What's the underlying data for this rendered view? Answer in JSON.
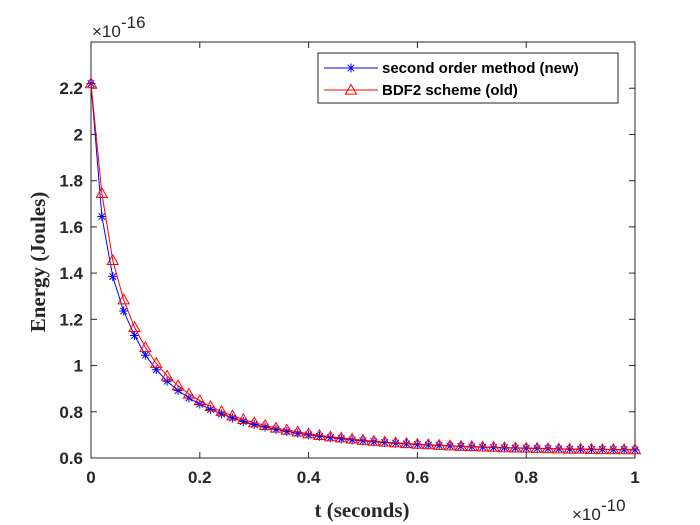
{
  "chart_data": {
    "type": "line",
    "title": "",
    "xlabel": "t (seconds)",
    "ylabel": "Energy (Joules)",
    "x_multiplier_label": "×10",
    "x_multiplier_exponent": "-10",
    "y_multiplier_label": "×10",
    "y_multiplier_exponent": "-16",
    "xlim": [
      0,
      1
    ],
    "ylim": [
      0.6,
      2.4
    ],
    "xticks": [
      0,
      0.2,
      0.4,
      0.6,
      0.8,
      1
    ],
    "xtick_labels": [
      "0",
      "0.2",
      "0.4",
      "0.6",
      "0.8",
      "1"
    ],
    "yticks": [
      0.6,
      0.8,
      1.0,
      1.2,
      1.4,
      1.6,
      1.8,
      2.0,
      2.2
    ],
    "ytick_labels": [
      "0.6",
      "0.8",
      "1",
      "1.2",
      "1.4",
      "1.6",
      "1.8",
      "2",
      "2.2"
    ],
    "grid": false,
    "legend_position": "top-right",
    "x": [
      0,
      0.02,
      0.04,
      0.06,
      0.08,
      0.1,
      0.12,
      0.14,
      0.16,
      0.18,
      0.2,
      0.22,
      0.24,
      0.26,
      0.28,
      0.3,
      0.32,
      0.34,
      0.36,
      0.38,
      0.4,
      0.42,
      0.44,
      0.46,
      0.48,
      0.5,
      0.52,
      0.54,
      0.56,
      0.58,
      0.6,
      0.62,
      0.64,
      0.66,
      0.68,
      0.7,
      0.72,
      0.74,
      0.76,
      0.78,
      0.8,
      0.82,
      0.84,
      0.86,
      0.88,
      0.9,
      0.92,
      0.94,
      0.96,
      0.98,
      1
    ],
    "series": [
      {
        "name": "second order method (new)",
        "color": "#0000ff",
        "marker": "asterisk",
        "values": [
          2.22,
          1.645,
          1.385,
          1.236,
          1.13,
          1.045,
          0.982,
          0.932,
          0.892,
          0.86,
          0.833,
          0.81,
          0.79,
          0.773,
          0.758,
          0.745,
          0.734,
          0.724,
          0.715,
          0.707,
          0.7,
          0.694,
          0.688,
          0.683,
          0.678,
          0.674,
          0.67,
          0.667,
          0.664,
          0.661,
          0.658,
          0.656,
          0.654,
          0.652,
          0.65,
          0.648,
          0.647,
          0.645,
          0.644,
          0.643,
          0.642,
          0.641,
          0.64,
          0.639,
          0.638,
          0.638,
          0.637,
          0.637,
          0.636,
          0.636,
          0.635
        ]
      },
      {
        "name": "BDF2 scheme (old)",
        "color": "#ff0000",
        "marker": "triangle",
        "values": [
          2.22,
          1.745,
          1.455,
          1.285,
          1.165,
          1.078,
          1.01,
          0.955,
          0.913,
          0.877,
          0.848,
          0.823,
          0.801,
          0.783,
          0.767,
          0.753,
          0.741,
          0.73,
          0.721,
          0.713,
          0.705,
          0.698,
          0.692,
          0.687,
          0.682,
          0.677,
          0.673,
          0.669,
          0.666,
          0.663,
          0.66,
          0.658,
          0.655,
          0.653,
          0.651,
          0.65,
          0.648,
          0.647,
          0.645,
          0.644,
          0.643,
          0.642,
          0.641,
          0.64,
          0.639,
          0.639,
          0.638,
          0.637,
          0.637,
          0.636,
          0.636
        ]
      }
    ]
  }
}
